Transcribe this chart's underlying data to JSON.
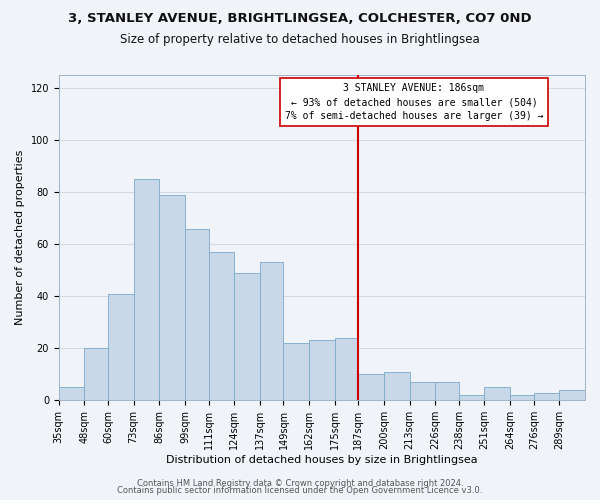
{
  "title1": "3, STANLEY AVENUE, BRIGHTLINGSEA, COLCHESTER, CO7 0ND",
  "title2": "Size of property relative to detached houses in Brightlingsea",
  "xlabel": "Distribution of detached houses by size in Brightlingsea",
  "ylabel": "Number of detached properties",
  "bar_labels": [
    "35sqm",
    "48sqm",
    "60sqm",
    "73sqm",
    "86sqm",
    "99sqm",
    "111sqm",
    "124sqm",
    "137sqm",
    "149sqm",
    "162sqm",
    "175sqm",
    "187sqm",
    "200sqm",
    "213sqm",
    "226sqm",
    "238sqm",
    "251sqm",
    "264sqm",
    "276sqm",
    "289sqm"
  ],
  "bar_values": [
    5,
    20,
    41,
    85,
    79,
    66,
    57,
    49,
    53,
    22,
    23,
    24,
    10,
    11,
    7,
    7,
    2,
    5,
    2,
    3,
    4
  ],
  "bar_color": "#c8d8e8",
  "bar_edgecolor": "#7aaaca",
  "property_line_label": "3 STANLEY AVENUE: 186sqm",
  "annotation_line1": "← 93% of detached houses are smaller (504)",
  "annotation_line2": "7% of semi-detached houses are larger (39) →",
  "vline_color": "#cc0000",
  "annotation_box_edgecolor": "#cc0000",
  "ylim": [
    0,
    125
  ],
  "footer1": "Contains HM Land Registry data © Crown copyright and database right 2024.",
  "footer2": "Contains public sector information licensed under the Open Government Licence v3.0.",
  "bg_color": "#f0f4f8",
  "grid_color": "#d0dae4",
  "title1_fontsize": 9.5,
  "title2_fontsize": 8.5,
  "xlabel_fontsize": 8,
  "ylabel_fontsize": 8,
  "tick_fontsize": 7,
  "footer_fontsize": 6,
  "bin_edges": [
    35,
    48,
    60,
    73,
    86,
    99,
    111,
    124,
    137,
    149,
    162,
    175,
    187,
    200,
    213,
    226,
    238,
    251,
    264,
    276,
    289,
    302
  ]
}
